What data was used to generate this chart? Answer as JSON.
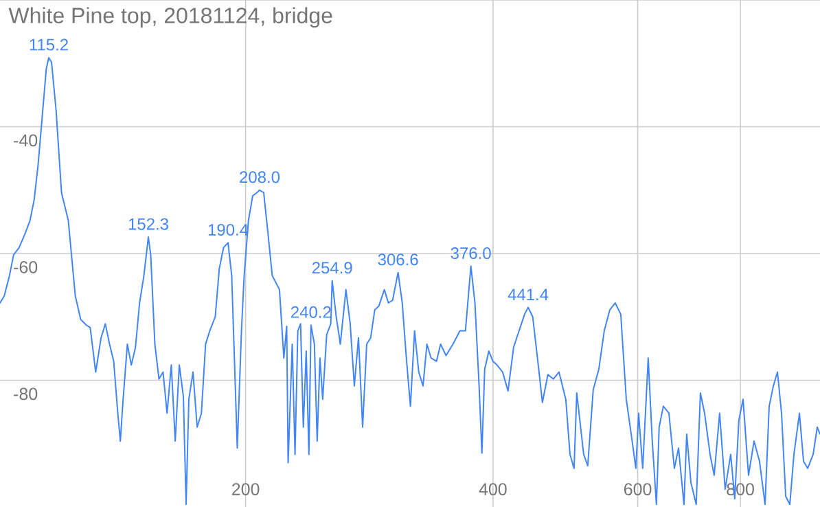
{
  "chart_data": {
    "type": "line",
    "title": "White Pine top, 20181124, bridge",
    "log": "x",
    "grid": true,
    "xlim": [
      100.5,
      1000
    ],
    "ylim": [
      -100,
      -20
    ],
    "xticks": [
      200,
      400,
      600,
      800
    ],
    "yticks": [
      {
        "value": -20,
        "label": null
      },
      -40,
      -60,
      -80
    ],
    "series": [
      {
        "color": "#4285f4",
        "x": [
          100.5,
          101.7,
          103.2,
          104.4,
          106.0,
          107.7,
          109.3,
          110.6,
          111.8,
          113.1,
          114.4,
          115.2,
          116.1,
          117.6,
          119.4,
          121.7,
          124.1,
          126.0,
          128.0,
          129.4,
          131.4,
          133.4,
          135.0,
          136.6,
          138.2,
          139.8,
          140.8,
          141.9,
          143.6,
          145.2,
          146.9,
          148.6,
          150.4,
          152.3,
          153.3,
          155.1,
          156.9,
          158.7,
          160.5,
          162.4,
          164.2,
          166.1,
          168.0,
          169.3,
          170.6,
          172.6,
          174.6,
          176.7,
          178.8,
          180.9,
          183.7,
          185.8,
          188.0,
          190.4,
          192.4,
          195.4,
          197.7,
          199.2,
          201.6,
          204.0,
          206.4,
          208.0,
          210.4,
          213.0,
          215.5,
          219.9,
          222.6,
          224.4,
          225.3,
          227.9,
          229.7,
          231.5,
          233.3,
          235.1,
          237.0,
          238.8,
          240.2,
          242.5,
          244.4,
          246.3,
          248.2,
          251.0,
          253.9,
          254.9,
          257.8,
          260.8,
          264.9,
          268.1,
          271.2,
          274.4,
          277.6,
          280.8,
          283.9,
          287.2,
          290.5,
          295.0,
          298.4,
          301.9,
          306.6,
          310.2,
          313.8,
          317.4,
          321.1,
          324.9,
          328.8,
          332.4,
          336.3,
          341.5,
          345.4,
          350.7,
          357.6,
          364.6,
          370.3,
          376.0,
          380.3,
          384.8,
          387.8,
          390.8,
          395.4,
          399.9,
          404.6,
          410.9,
          417.2,
          423.8,
          430.3,
          437.0,
          441.4,
          447.1,
          454.1,
          459.4,
          466.5,
          473.8,
          481.2,
          490.5,
          496.3,
          502.0,
          505.8,
          515.7,
          521.6,
          529.7,
          538.0,
          546.3,
          554.9,
          563.4,
          572.2,
          581.1,
          590.0,
          596.9,
          601.6,
          608.5,
          617.9,
          625.0,
          632.3,
          637.2,
          644.7,
          654.8,
          664.9,
          672.7,
          683.1,
          688.3,
          696.4,
          706.9,
          715.3,
          723.7,
          734.9,
          743.4,
          754.9,
          766.7,
          778.6,
          787.6,
          796.7,
          806.0,
          818.5,
          831.2,
          844.1,
          857.3,
          867.2,
          877.4,
          887.6,
          897.8,
          908.3,
          918.9,
          929.5,
          944.0,
          954.9,
          966.0,
          980.9,
          992.3,
          1000
        ],
        "values": [
          -67.8,
          -66.7,
          -63.5,
          -60.2,
          -59.1,
          -57.0,
          -54.8,
          -51.5,
          -46.1,
          -38.5,
          -30.9,
          -29.1,
          -29.8,
          -37.4,
          -50.4,
          -54.8,
          -66.7,
          -70.4,
          -71.3,
          -71.7,
          -78.7,
          -73.3,
          -71.1,
          -74.3,
          -77.0,
          -85.2,
          -89.6,
          -83.0,
          -74.3,
          -77.6,
          -74.8,
          -67.8,
          -63.5,
          -57.4,
          -60.2,
          -74.3,
          -79.8,
          -78.7,
          -85.2,
          -77.6,
          -89.6,
          -77.6,
          -82.6,
          -99.6,
          -83.0,
          -78.7,
          -87.4,
          -85.2,
          -74.3,
          -72.2,
          -70.0,
          -62.4,
          -59.1,
          -58.3,
          -63.5,
          -90.7,
          -72.2,
          -63.5,
          -54.8,
          -50.9,
          -50.4,
          -50.0,
          -50.4,
          -57.0,
          -63.5,
          -65.7,
          -76.5,
          -71.5,
          -93.0,
          -74.3,
          -91.7,
          -72.2,
          -71.1,
          -87.4,
          -75.4,
          -91.7,
          -71.3,
          -74.3,
          -89.6,
          -76.5,
          -83.0,
          -72.8,
          -71.1,
          -64.3,
          -70.0,
          -74.3,
          -65.7,
          -71.1,
          -80.9,
          -73.3,
          -87.4,
          -74.3,
          -73.3,
          -68.9,
          -68.3,
          -65.7,
          -67.8,
          -67.4,
          -63.0,
          -67.8,
          -76.5,
          -84.1,
          -72.2,
          -78.7,
          -80.9,
          -74.3,
          -76.5,
          -77.0,
          -74.3,
          -76.1,
          -74.3,
          -72.2,
          -72.2,
          -62.0,
          -67.8,
          -80.9,
          -91.5,
          -78.3,
          -75.4,
          -77.0,
          -77.6,
          -78.7,
          -81.7,
          -74.8,
          -72.2,
          -69.6,
          -68.5,
          -70.0,
          -77.6,
          -83.5,
          -79.1,
          -79.8,
          -78.7,
          -83.0,
          -91.7,
          -93.9,
          -82.0,
          -91.7,
          -93.5,
          -81.5,
          -78.3,
          -72.2,
          -68.9,
          -67.8,
          -69.6,
          -83.0,
          -89.1,
          -93.9,
          -85.2,
          -93.9,
          -76.5,
          -89.6,
          -99.6,
          -87.4,
          -84.1,
          -85.2,
          -93.9,
          -90.7,
          -99.6,
          -88.5,
          -96.1,
          -99.6,
          -82.0,
          -85.2,
          -91.7,
          -95.0,
          -85.2,
          -97.2,
          -91.7,
          -98.7,
          -86.3,
          -83.0,
          -95.0,
          -89.6,
          -92.8,
          -99.6,
          -84.1,
          -80.9,
          -78.7,
          -85.2,
          -98.3,
          -99.6,
          -91.7,
          -85.2,
          -92.8,
          -93.9,
          -91.7,
          -87.4,
          -88.5
        ]
      }
    ],
    "annotations": [
      {
        "text": "115.2",
        "x": 115.2,
        "y": -29.1
      },
      {
        "text": "152.3",
        "x": 152.3,
        "y": -57.4
      },
      {
        "text": "190.4",
        "x": 190.4,
        "y": -58.3
      },
      {
        "text": "208.0",
        "x": 208.0,
        "y": -50.0
      },
      {
        "text": "240.2",
        "x": 240.2,
        "y": -71.3
      },
      {
        "text": "254.9",
        "x": 254.9,
        "y": -64.3
      },
      {
        "text": "306.6",
        "x": 306.6,
        "y": -63.0
      },
      {
        "text": "376.0",
        "x": 376.0,
        "y": -62.0
      },
      {
        "text": "441.4",
        "x": 441.4,
        "y": -68.5
      }
    ]
  }
}
